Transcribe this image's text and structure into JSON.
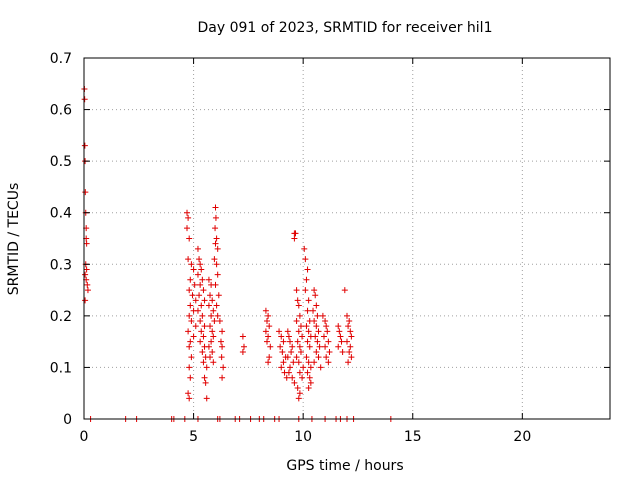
{
  "chart_data": {
    "type": "scatter",
    "title": "Day 091 of 2023, SRMTID for receiver hil1",
    "xlabel": "GPS time / hours",
    "ylabel": "SRMTID / TECUs",
    "xlim": [
      0,
      24
    ],
    "ylim": [
      0,
      0.7
    ],
    "xticks": [
      0,
      5,
      10,
      15,
      20
    ],
    "yticks": [
      0,
      0.1,
      0.2,
      0.3,
      0.4,
      0.5,
      0.6,
      0.7
    ],
    "xtick_labels": [
      "0",
      "5",
      "10",
      "15",
      "20"
    ],
    "ytick_labels": [
      "0",
      "0.1",
      "0.2",
      "0.3",
      "0.4",
      "0.5",
      "0.6",
      "0.7"
    ],
    "grid": true,
    "marker": "+",
    "color": "#e00000",
    "series": [
      {
        "name": "hil1",
        "points": [
          [
            0.02,
            0.64
          ],
          [
            0.03,
            0.62
          ],
          [
            0.04,
            0.53
          ],
          [
            0.05,
            0.5
          ],
          [
            0.06,
            0.44
          ],
          [
            0.08,
            0.4
          ],
          [
            0.1,
            0.37
          ],
          [
            0.1,
            0.35
          ],
          [
            0.12,
            0.34
          ],
          [
            0.08,
            0.3
          ],
          [
            0.12,
            0.29
          ],
          [
            0.05,
            0.28
          ],
          [
            0.1,
            0.27
          ],
          [
            0.15,
            0.26
          ],
          [
            0.18,
            0.25
          ],
          [
            0.05,
            0.23
          ],
          [
            0.3,
            0
          ],
          [
            1.9,
            0
          ],
          [
            2.4,
            0
          ],
          [
            4.0,
            0
          ],
          [
            4.1,
            0
          ],
          [
            4.6,
            0
          ],
          [
            5.2,
            0
          ],
          [
            6.1,
            0
          ],
          [
            6.2,
            0
          ],
          [
            6.9,
            0
          ],
          [
            7.1,
            0
          ],
          [
            7.6,
            0
          ],
          [
            8.0,
            0
          ],
          [
            8.2,
            0
          ],
          [
            8.7,
            0
          ],
          [
            8.9,
            0
          ],
          [
            9.8,
            0
          ],
          [
            10.4,
            0
          ],
          [
            11.0,
            0
          ],
          [
            11.5,
            0
          ],
          [
            11.7,
            0
          ],
          [
            12.0,
            0
          ],
          [
            12.3,
            0
          ],
          [
            14.0,
            0
          ],
          [
            4.7,
            0.4
          ],
          [
            4.75,
            0.39
          ],
          [
            4.7,
            0.37
          ],
          [
            4.8,
            0.35
          ],
          [
            4.75,
            0.31
          ],
          [
            4.9,
            0.3
          ],
          [
            5.0,
            0.29
          ],
          [
            4.85,
            0.27
          ],
          [
            5.05,
            0.26
          ],
          [
            4.8,
            0.25
          ],
          [
            4.95,
            0.24
          ],
          [
            5.1,
            0.23
          ],
          [
            4.85,
            0.22
          ],
          [
            5.0,
            0.21
          ],
          [
            4.8,
            0.2
          ],
          [
            4.9,
            0.19
          ],
          [
            5.1,
            0.18
          ],
          [
            4.75,
            0.17
          ],
          [
            5.0,
            0.16
          ],
          [
            4.85,
            0.15
          ],
          [
            4.8,
            0.14
          ],
          [
            4.9,
            0.12
          ],
          [
            4.8,
            0.1
          ],
          [
            4.85,
            0.08
          ],
          [
            4.75,
            0.05
          ],
          [
            4.8,
            0.04
          ],
          [
            5.2,
            0.33
          ],
          [
            5.25,
            0.31
          ],
          [
            5.3,
            0.3
          ],
          [
            5.35,
            0.29
          ],
          [
            5.2,
            0.28
          ],
          [
            5.4,
            0.27
          ],
          [
            5.3,
            0.26
          ],
          [
            5.45,
            0.25
          ],
          [
            5.25,
            0.24
          ],
          [
            5.5,
            0.23
          ],
          [
            5.35,
            0.22
          ],
          [
            5.2,
            0.21
          ],
          [
            5.4,
            0.2
          ],
          [
            5.3,
            0.19
          ],
          [
            5.5,
            0.18
          ],
          [
            5.35,
            0.17
          ],
          [
            5.45,
            0.16
          ],
          [
            5.3,
            0.15
          ],
          [
            5.5,
            0.14
          ],
          [
            5.4,
            0.13
          ],
          [
            5.55,
            0.12
          ],
          [
            5.45,
            0.11
          ],
          [
            5.6,
            0.1
          ],
          [
            5.5,
            0.08
          ],
          [
            5.55,
            0.07
          ],
          [
            5.6,
            0.04
          ],
          [
            5.7,
            0.27
          ],
          [
            5.8,
            0.26
          ],
          [
            5.75,
            0.24
          ],
          [
            5.85,
            0.23
          ],
          [
            5.7,
            0.22
          ],
          [
            5.9,
            0.21
          ],
          [
            5.8,
            0.2
          ],
          [
            5.95,
            0.19
          ],
          [
            5.75,
            0.18
          ],
          [
            5.85,
            0.17
          ],
          [
            5.9,
            0.16
          ],
          [
            5.8,
            0.15
          ],
          [
            5.7,
            0.14
          ],
          [
            5.85,
            0.13
          ],
          [
            5.75,
            0.12
          ],
          [
            5.9,
            0.11
          ],
          [
            6.0,
            0.41
          ],
          [
            6.02,
            0.39
          ],
          [
            5.98,
            0.37
          ],
          [
            6.05,
            0.35
          ],
          [
            6.0,
            0.34
          ],
          [
            6.1,
            0.33
          ],
          [
            5.95,
            0.31
          ],
          [
            6.05,
            0.3
          ],
          [
            6.1,
            0.28
          ],
          [
            6.0,
            0.26
          ],
          [
            6.15,
            0.24
          ],
          [
            6.05,
            0.22
          ],
          [
            6.1,
            0.2
          ],
          [
            6.2,
            0.19
          ],
          [
            6.3,
            0.17
          ],
          [
            6.25,
            0.15
          ],
          [
            6.3,
            0.14
          ],
          [
            6.28,
            0.12
          ],
          [
            6.35,
            0.1
          ],
          [
            6.3,
            0.08
          ],
          [
            7.25,
            0.16
          ],
          [
            7.3,
            0.14
          ],
          [
            7.25,
            0.13
          ],
          [
            8.3,
            0.21
          ],
          [
            8.4,
            0.2
          ],
          [
            8.35,
            0.19
          ],
          [
            8.45,
            0.18
          ],
          [
            8.3,
            0.17
          ],
          [
            8.4,
            0.16
          ],
          [
            8.35,
            0.15
          ],
          [
            8.5,
            0.14
          ],
          [
            8.45,
            0.12
          ],
          [
            8.4,
            0.11
          ],
          [
            8.9,
            0.17
          ],
          [
            9.0,
            0.16
          ],
          [
            9.1,
            0.15
          ],
          [
            8.95,
            0.14
          ],
          [
            9.05,
            0.13
          ],
          [
            9.2,
            0.12
          ],
          [
            9.1,
            0.11
          ],
          [
            9.0,
            0.1
          ],
          [
            9.15,
            0.09
          ],
          [
            9.25,
            0.08
          ],
          [
            9.3,
            0.17
          ],
          [
            9.35,
            0.16
          ],
          [
            9.4,
            0.15
          ],
          [
            9.5,
            0.14
          ],
          [
            9.45,
            0.13
          ],
          [
            9.3,
            0.12
          ],
          [
            9.55,
            0.11
          ],
          [
            9.4,
            0.1
          ],
          [
            9.35,
            0.09
          ],
          [
            9.5,
            0.08
          ],
          [
            9.6,
            0.07
          ],
          [
            9.6,
            0.36
          ],
          [
            9.65,
            0.36
          ],
          [
            9.6,
            0.35
          ],
          [
            9.7,
            0.25
          ],
          [
            9.75,
            0.23
          ],
          [
            9.8,
            0.22
          ],
          [
            9.85,
            0.2
          ],
          [
            9.7,
            0.19
          ],
          [
            9.9,
            0.18
          ],
          [
            9.8,
            0.17
          ],
          [
            9.95,
            0.16
          ],
          [
            9.75,
            0.15
          ],
          [
            9.85,
            0.14
          ],
          [
            9.9,
            0.13
          ],
          [
            9.7,
            0.12
          ],
          [
            9.8,
            0.11
          ],
          [
            10.0,
            0.1
          ],
          [
            9.85,
            0.09
          ],
          [
            9.95,
            0.08
          ],
          [
            9.75,
            0.06
          ],
          [
            9.85,
            0.05
          ],
          [
            9.8,
            0.04
          ],
          [
            10.05,
            0.33
          ],
          [
            10.1,
            0.31
          ],
          [
            10.2,
            0.29
          ],
          [
            10.15,
            0.27
          ],
          [
            10.1,
            0.25
          ],
          [
            10.25,
            0.23
          ],
          [
            10.2,
            0.21
          ],
          [
            10.3,
            0.19
          ],
          [
            10.15,
            0.18
          ],
          [
            10.25,
            0.17
          ],
          [
            10.35,
            0.16
          ],
          [
            10.2,
            0.15
          ],
          [
            10.3,
            0.14
          ],
          [
            10.15,
            0.12
          ],
          [
            10.25,
            0.11
          ],
          [
            10.35,
            0.1
          ],
          [
            10.2,
            0.09
          ],
          [
            10.3,
            0.08
          ],
          [
            10.35,
            0.07
          ],
          [
            10.25,
            0.06
          ],
          [
            10.5,
            0.25
          ],
          [
            10.55,
            0.24
          ],
          [
            10.6,
            0.22
          ],
          [
            10.45,
            0.21
          ],
          [
            10.65,
            0.2
          ],
          [
            10.5,
            0.19
          ],
          [
            10.6,
            0.18
          ],
          [
            10.7,
            0.17
          ],
          [
            10.55,
            0.16
          ],
          [
            10.65,
            0.15
          ],
          [
            10.75,
            0.14
          ],
          [
            10.6,
            0.13
          ],
          [
            10.7,
            0.12
          ],
          [
            10.5,
            0.11
          ],
          [
            10.8,
            0.1
          ],
          [
            10.9,
            0.2
          ],
          [
            11.0,
            0.19
          ],
          [
            11.05,
            0.18
          ],
          [
            11.1,
            0.17
          ],
          [
            10.95,
            0.16
          ],
          [
            11.15,
            0.15
          ],
          [
            11.0,
            0.14
          ],
          [
            11.2,
            0.13
          ],
          [
            11.05,
            0.12
          ],
          [
            11.15,
            0.11
          ],
          [
            11.6,
            0.18
          ],
          [
            11.65,
            0.17
          ],
          [
            11.7,
            0.16
          ],
          [
            11.75,
            0.15
          ],
          [
            11.6,
            0.14
          ],
          [
            11.8,
            0.13
          ],
          [
            11.9,
            0.25
          ],
          [
            12.0,
            0.2
          ],
          [
            12.1,
            0.19
          ],
          [
            12.05,
            0.18
          ],
          [
            12.15,
            0.17
          ],
          [
            12.2,
            0.16
          ],
          [
            12.0,
            0.15
          ],
          [
            12.15,
            0.14
          ],
          [
            12.1,
            0.13
          ],
          [
            12.2,
            0.12
          ],
          [
            12.05,
            0.11
          ]
        ]
      }
    ]
  }
}
